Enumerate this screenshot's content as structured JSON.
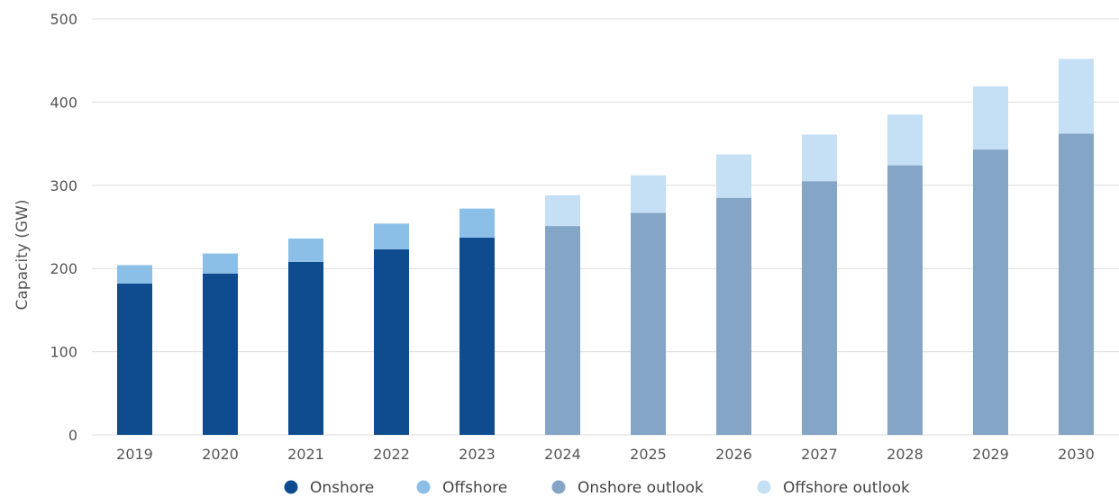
{
  "chart_data": {
    "type": "bar",
    "stacked": true,
    "title": "",
    "xlabel": "",
    "ylabel": "Capacity (GW)",
    "ylim": [
      0,
      500
    ],
    "yticks": [
      0,
      100,
      200,
      300,
      400,
      500
    ],
    "grid": true,
    "legend_position": "bottom",
    "categories": [
      "2019",
      "2020",
      "2021",
      "2022",
      "2023",
      "2024",
      "2025",
      "2026",
      "2027",
      "2028",
      "2029",
      "2030"
    ],
    "series": [
      {
        "name": "Onshore",
        "color": "#0f4c8f",
        "values": [
          182,
          194,
          208,
          223,
          237,
          null,
          null,
          null,
          null,
          null,
          null,
          null
        ]
      },
      {
        "name": "Offshore",
        "color": "#8bbfe8",
        "values": [
          22,
          24,
          28,
          31,
          35,
          null,
          null,
          null,
          null,
          null,
          null,
          null
        ]
      },
      {
        "name": "Onshore outlook",
        "color": "#85a5c7",
        "values": [
          null,
          null,
          null,
          null,
          null,
          251,
          267,
          285,
          305,
          324,
          343,
          362
        ]
      },
      {
        "name": "Offshore outlook",
        "color": "#c5e0f5",
        "values": [
          null,
          null,
          null,
          null,
          null,
          37,
          45,
          52,
          56,
          61,
          76,
          90
        ]
      }
    ]
  }
}
